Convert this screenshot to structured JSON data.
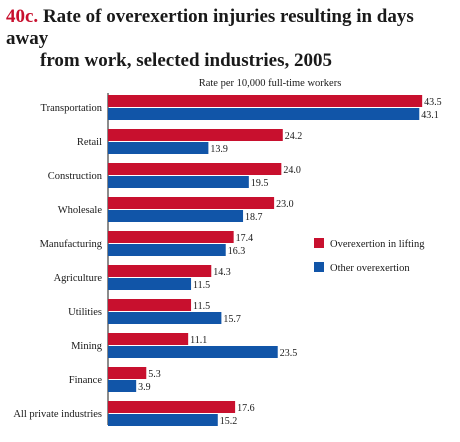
{
  "figure": {
    "number": "40c.",
    "title_line1": "Rate of overexertion injuries resulting in days away",
    "title_line2": "from work, selected industries, 2005"
  },
  "chart_data": {
    "type": "bar",
    "orientation": "horizontal",
    "title": "Rate of overexertion injuries resulting in days away from work, selected industries, 2005",
    "xlabel": "Rate per 10,000 full-time workers",
    "ylabel": "",
    "xlim": [
      0,
      45
    ],
    "grid": false,
    "legend_position": "right",
    "categories": [
      "Transportation",
      "Retail",
      "Construction",
      "Wholesale",
      "Manufacturing",
      "Agriculture",
      "Utilities",
      "Mining",
      "Finance",
      "All private industries"
    ],
    "series": [
      {
        "name": "Overexertion in lifting",
        "color": "#c8102e",
        "values": [
          43.5,
          24.2,
          24.0,
          23.0,
          17.4,
          14.3,
          11.5,
          11.1,
          5.3,
          17.6
        ],
        "labels": [
          "43.5",
          "24.2",
          "24.0",
          "23.0",
          "17.4",
          "14.3",
          "11.5",
          "11.1",
          "5.3",
          "17.6"
        ]
      },
      {
        "name": "Other overexertion",
        "color": "#1155a8",
        "values": [
          43.1,
          13.9,
          19.5,
          18.7,
          16.3,
          11.5,
          15.7,
          23.5,
          3.9,
          15.2
        ],
        "labels": [
          "43.1",
          "13.9",
          "19.5",
          "18.7",
          "16.3",
          "11.5",
          "15.7",
          "23.5",
          "3.9",
          "15.2"
        ]
      }
    ]
  }
}
